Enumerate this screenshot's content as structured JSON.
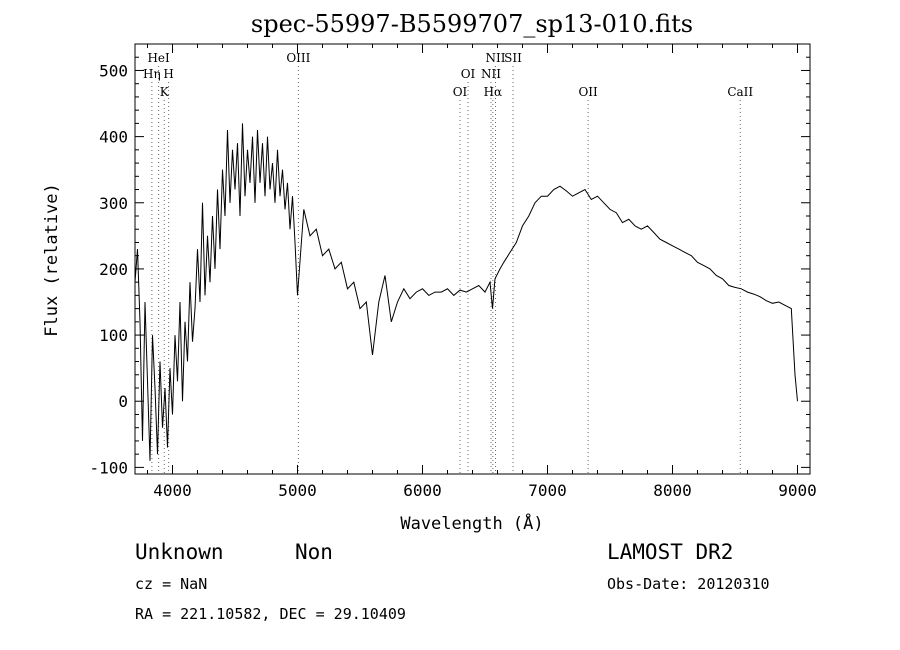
{
  "chart_data": {
    "type": "line",
    "title": "spec-55997-B5599707_sp13-010.fits",
    "xlabel": "Wavelength (Å)",
    "ylabel": "Flux (relative)",
    "xlim": [
      3700,
      9100
    ],
    "ylim": [
      -110,
      540
    ],
    "xticks": [
      4000,
      5000,
      6000,
      7000,
      8000,
      9000
    ],
    "yticks": [
      -100,
      0,
      100,
      200,
      300,
      400,
      500
    ],
    "grid": false,
    "series": [
      {
        "x": [
          3700,
          3720,
          3740,
          3760,
          3780,
          3800,
          3820,
          3840,
          3860,
          3880,
          3900,
          3920,
          3940,
          3960,
          3980,
          4000,
          4020,
          4040,
          4060,
          4080,
          4100,
          4120,
          4140,
          4160,
          4180,
          4200,
          4220,
          4240,
          4260,
          4280,
          4300,
          4320,
          4340,
          4360,
          4380,
          4400,
          4420,
          4440,
          4460,
          4480,
          4500,
          4520,
          4540,
          4560,
          4580,
          4600,
          4620,
          4640,
          4660,
          4680,
          4700,
          4720,
          4740,
          4760,
          4780,
          4800,
          4820,
          4840,
          4860,
          4880,
          4900,
          4920,
          4940,
          4960,
          4980,
          5000,
          5050,
          5100,
          5150,
          5200,
          5250,
          5300,
          5350,
          5400,
          5450,
          5500,
          5550,
          5600,
          5650,
          5700,
          5750,
          5800,
          5850,
          5900,
          5950,
          6000,
          6050,
          6100,
          6150,
          6200,
          6250,
          6300,
          6350,
          6400,
          6450,
          6500,
          6540,
          6560,
          6580,
          6620,
          6650,
          6700,
          6750,
          6800,
          6850,
          6900,
          6950,
          7000,
          7050,
          7100,
          7150,
          7200,
          7250,
          7300,
          7350,
          7400,
          7450,
          7500,
          7550,
          7600,
          7650,
          7700,
          7750,
          7800,
          7850,
          7900,
          7950,
          8000,
          8050,
          8100,
          8150,
          8200,
          8250,
          8300,
          8350,
          8400,
          8450,
          8500,
          8550,
          8600,
          8650,
          8700,
          8750,
          8800,
          8850,
          8900,
          8950,
          8980,
          9000
        ],
        "y": [
          180,
          230,
          120,
          -60,
          150,
          30,
          -90,
          100,
          20,
          -80,
          60,
          -40,
          20,
          -70,
          50,
          -20,
          100,
          30,
          150,
          0,
          120,
          60,
          180,
          90,
          140,
          230,
          150,
          300,
          160,
          250,
          180,
          280,
          200,
          320,
          230,
          350,
          280,
          410,
          300,
          380,
          320,
          390,
          280,
          420,
          310,
          380,
          330,
          400,
          300,
          410,
          330,
          390,
          310,
          400,
          320,
          360,
          300,
          380,
          310,
          350,
          290,
          330,
          260,
          310,
          240,
          160,
          290,
          250,
          260,
          220,
          230,
          200,
          210,
          170,
          180,
          140,
          150,
          70,
          150,
          190,
          120,
          150,
          170,
          155,
          165,
          170,
          160,
          165,
          165,
          170,
          160,
          168,
          165,
          170,
          175,
          165,
          180,
          140,
          185,
          200,
          210,
          225,
          240,
          265,
          280,
          300,
          310,
          310,
          320,
          325,
          318,
          310,
          315,
          320,
          305,
          310,
          300,
          290,
          285,
          270,
          275,
          265,
          260,
          265,
          255,
          245,
          240,
          235,
          230,
          225,
          220,
          210,
          205,
          200,
          190,
          185,
          175,
          172,
          170,
          165,
          162,
          158,
          152,
          148,
          150,
          145,
          140,
          40,
          0
        ]
      }
    ],
    "line_markers": [
      {
        "label": "HeI",
        "wavelength": 3889,
        "row": 1
      },
      {
        "label": "Hη",
        "wavelength": 3835,
        "row": 2
      },
      {
        "label": "H",
        "wavelength": 3969,
        "row": 2
      },
      {
        "label": "K",
        "wavelength": 3934,
        "row": 3
      },
      {
        "label": "OIII",
        "wavelength": 5007,
        "row": 1
      },
      {
        "label": "OI",
        "wavelength": 6364,
        "row": 2
      },
      {
        "label": "OI",
        "wavelength": 6300,
        "row": 3
      },
      {
        "label": "NII",
        "wavelength": 6584,
        "row": 1
      },
      {
        "label": "SII",
        "wavelength": 6724,
        "row": 1
      },
      {
        "label": "NII",
        "wavelength": 6548,
        "row": 2
      },
      {
        "label": "Hα",
        "wavelength": 6563,
        "row": 3
      },
      {
        "label": "OII",
        "wavelength": 7325,
        "row": 3
      },
      {
        "label": "CaII",
        "wavelength": 8542,
        "row": 3
      }
    ]
  },
  "info": {
    "class": "Unknown",
    "subclass": "Non",
    "survey": "LAMOST DR2",
    "cz": "cz = NaN",
    "obs_date": "Obs-Date: 20120310",
    "coords": "RA = 221.10582, DEC =  29.10409"
  }
}
